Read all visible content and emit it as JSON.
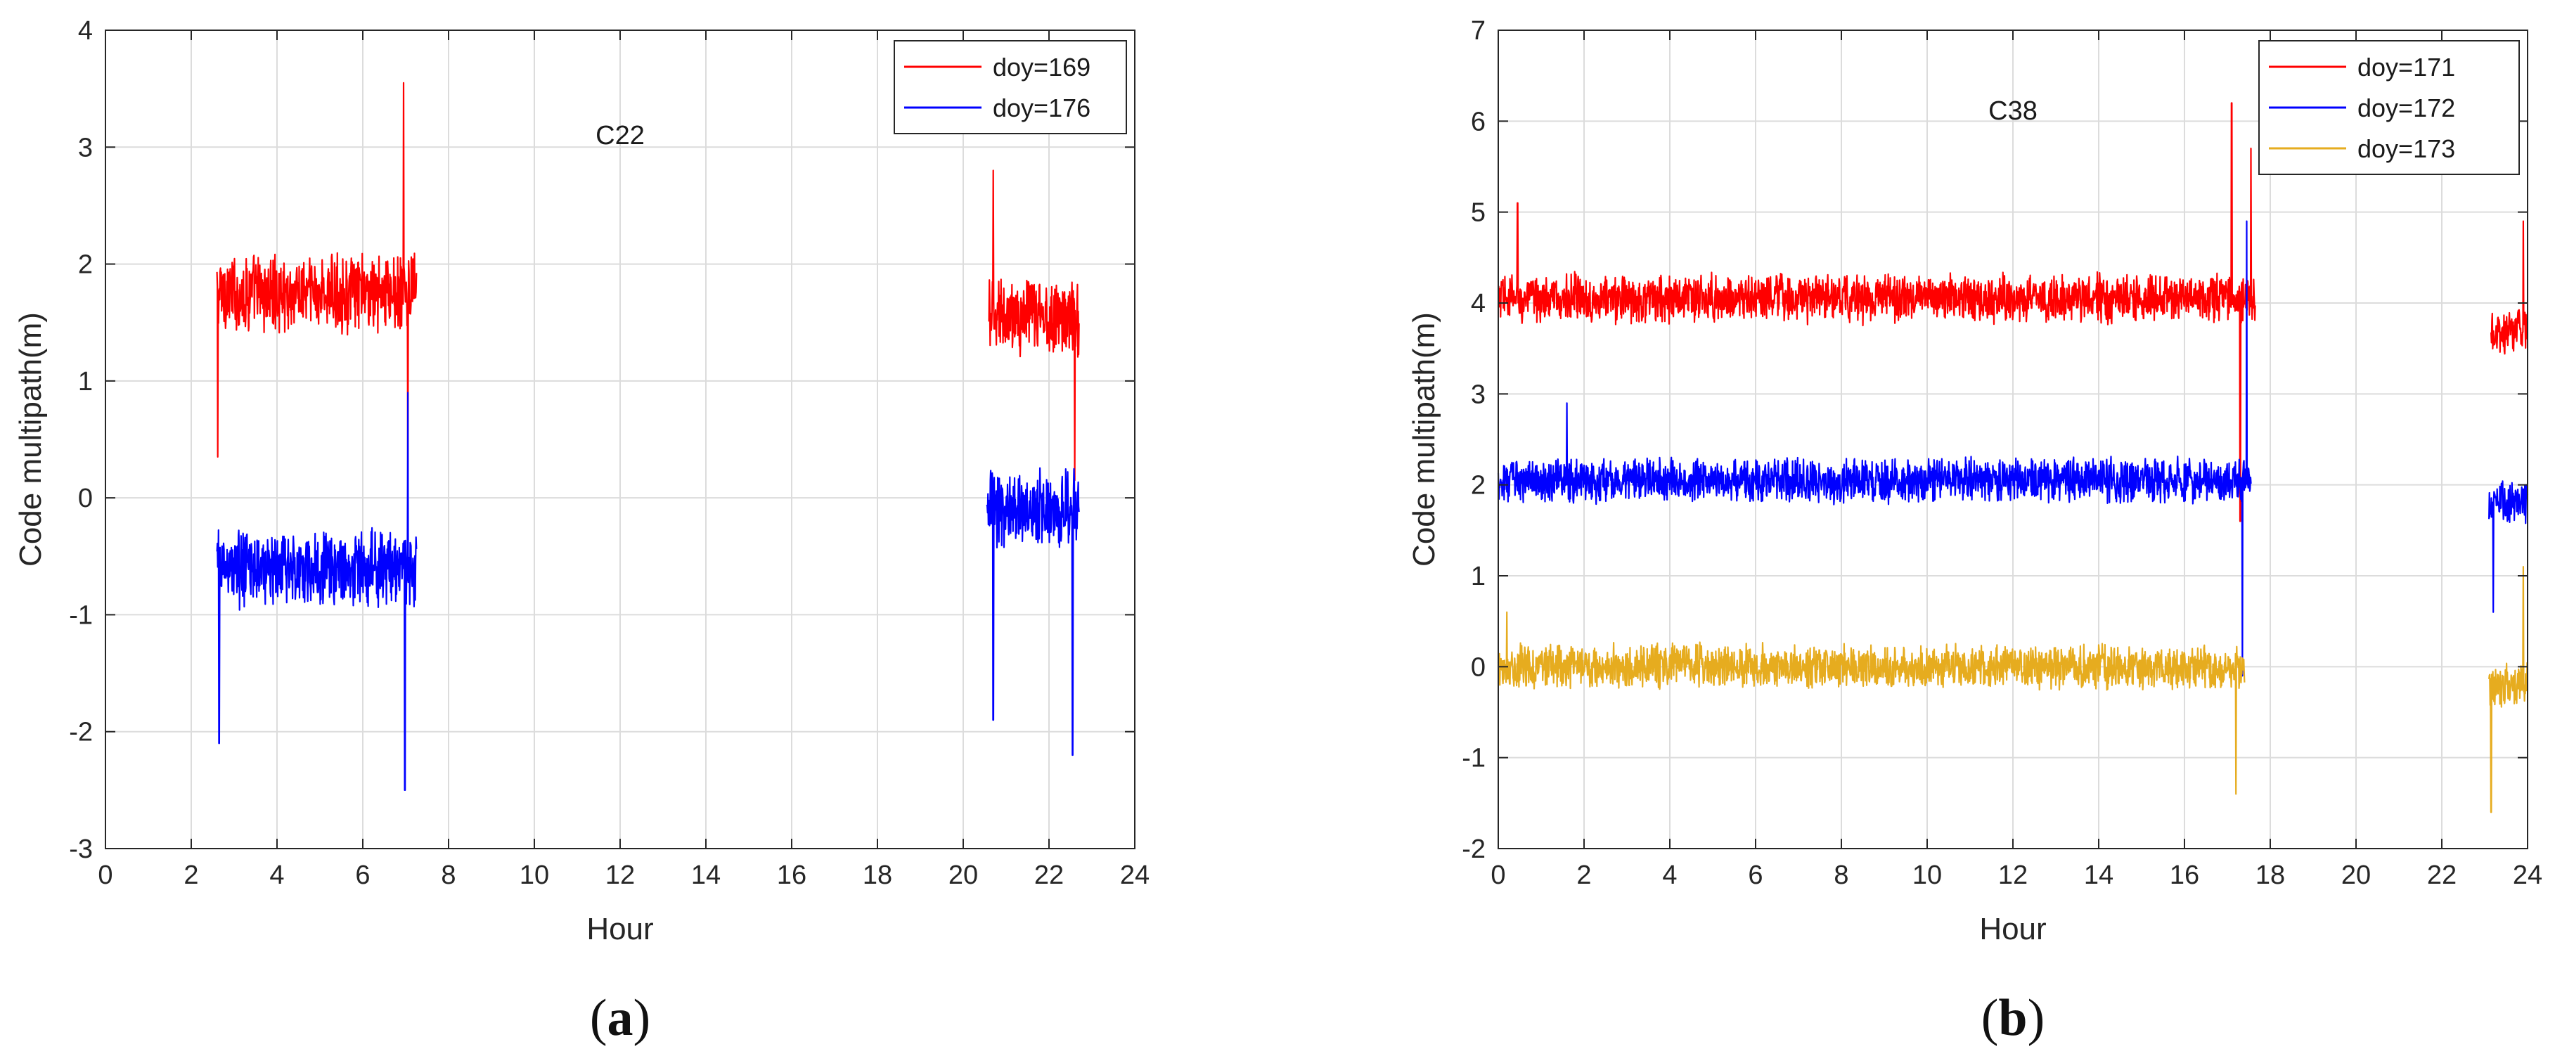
{
  "chart_data": [
    {
      "type": "line",
      "caption_letter": "a",
      "annotation": "C22",
      "xlabel": "Hour",
      "ylabel": "Code multipath(m)",
      "xlim": [
        0,
        24
      ],
      "ylim": [
        -3,
        4
      ],
      "xticks": [
        "0",
        "2",
        "4",
        "6",
        "8",
        "10",
        "12",
        "14",
        "16",
        "18",
        "20",
        "22",
        "24"
      ],
      "yticks": [
        "-3",
        "-2",
        "-1",
        "0",
        "1",
        "2",
        "3",
        "4"
      ],
      "grid": true,
      "legend_position": "top-right",
      "series": [
        {
          "name": "doy=169",
          "color": "#ff0000",
          "mean": 1.75,
          "noise": 0.25,
          "segments": [
            {
              "start": 2.6,
              "end": 7.25,
              "mean": 1.75
            },
            {
              "start": 20.6,
              "end": 22.7,
              "mean": 1.55
            }
          ],
          "extremes": [
            {
              "x": 6.95,
              "y": 3.55
            },
            {
              "x": 2.62,
              "y": 0.35
            },
            {
              "x": 7.05,
              "y": 0.15
            },
            {
              "x": 20.7,
              "y": 2.8
            },
            {
              "x": 22.6,
              "y": 0.15
            }
          ]
        },
        {
          "name": "doy=176",
          "color": "#0000ff",
          "mean": -0.6,
          "noise": 0.25,
          "segments": [
            {
              "start": 2.6,
              "end": 7.25,
              "mean": -0.6
            },
            {
              "start": 20.55,
              "end": 22.7,
              "mean": -0.1
            }
          ],
          "extremes": [
            {
              "x": 2.65,
              "y": -2.1
            },
            {
              "x": 6.98,
              "y": -2.5
            },
            {
              "x": 7.05,
              "y": 0.9
            },
            {
              "x": 22.55,
              "y": -2.2
            },
            {
              "x": 20.7,
              "y": -1.9
            }
          ]
        }
      ]
    },
    {
      "type": "line",
      "caption_letter": "b",
      "annotation": "C38",
      "xlabel": "Hour",
      "ylabel": "Code multipath(m)",
      "xlim": [
        0,
        24
      ],
      "ylim": [
        -2,
        7
      ],
      "xticks": [
        "0",
        "2",
        "4",
        "6",
        "8",
        "10",
        "12",
        "14",
        "16",
        "18",
        "20",
        "22",
        "24"
      ],
      "yticks": [
        "-2",
        "-1",
        "0",
        "1",
        "2",
        "3",
        "4",
        "5",
        "6",
        "7"
      ],
      "grid": true,
      "legend_position": "top-right",
      "series": [
        {
          "name": "doy=171",
          "color": "#ff0000",
          "mean": 4.05,
          "noise": 0.2,
          "segments": [
            {
              "start": 0.0,
              "end": 17.65,
              "mean": 4.05
            },
            {
              "start": 23.15,
              "end": 24.0,
              "mean": 3.7
            }
          ],
          "extremes": [
            {
              "x": 0.45,
              "y": 5.1
            },
            {
              "x": 17.1,
              "y": 6.2
            },
            {
              "x": 17.55,
              "y": 5.7
            },
            {
              "x": 17.3,
              "y": 1.6
            },
            {
              "x": 23.9,
              "y": 4.9
            }
          ]
        },
        {
          "name": "doy=172",
          "color": "#0000ff",
          "mean": 2.05,
          "noise": 0.18,
          "segments": [
            {
              "start": 0.0,
              "end": 17.55,
              "mean": 2.05
            },
            {
              "start": 23.1,
              "end": 24.0,
              "mean": 1.8
            }
          ],
          "extremes": [
            {
              "x": 1.6,
              "y": 2.9
            },
            {
              "x": 17.45,
              "y": 4.9
            },
            {
              "x": 17.35,
              "y": -0.1
            },
            {
              "x": 23.2,
              "y": 0.6
            }
          ]
        },
        {
          "name": "doy=173",
          "color": "#e6ac1f",
          "mean": 0.0,
          "noise": 0.18,
          "segments": [
            {
              "start": 0.0,
              "end": 17.4,
              "mean": 0.0
            },
            {
              "start": 23.1,
              "end": 24.0,
              "mean": -0.2
            }
          ],
          "extremes": [
            {
              "x": 0.2,
              "y": 0.6
            },
            {
              "x": 17.2,
              "y": -1.4
            },
            {
              "x": 17.45,
              "y": 1.3
            },
            {
              "x": 23.15,
              "y": -1.6
            },
            {
              "x": 23.9,
              "y": 1.1
            }
          ]
        }
      ]
    }
  ]
}
